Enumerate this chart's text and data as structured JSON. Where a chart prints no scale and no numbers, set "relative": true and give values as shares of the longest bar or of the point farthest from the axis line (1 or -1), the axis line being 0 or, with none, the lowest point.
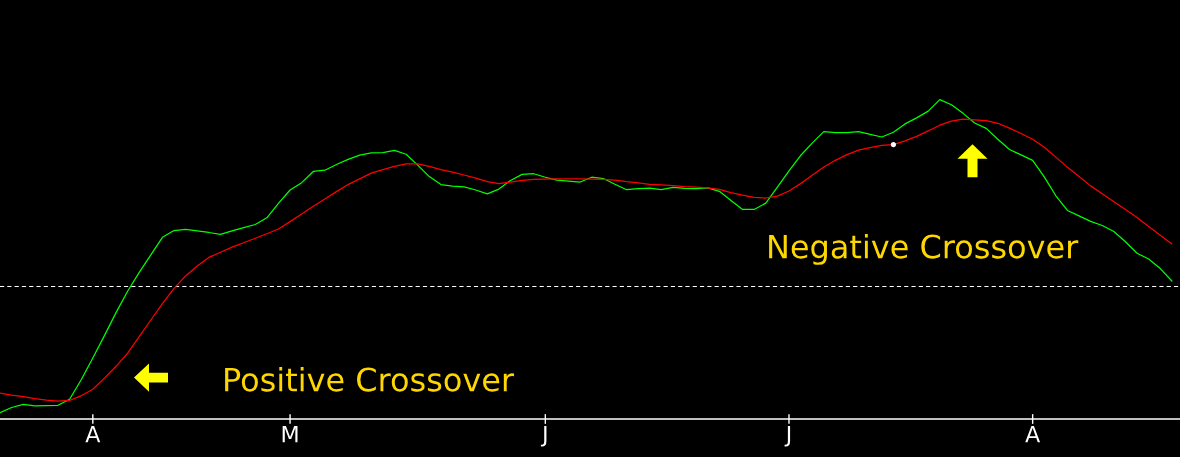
{
  "chart_data": {
    "type": "line",
    "relative": true,
    "tick_labels": "x",
    "categories": [
      null,
      null,
      null,
      null,
      null,
      null,
      null,
      null,
      "A",
      null,
      null,
      null,
      null,
      null,
      null,
      null,
      null,
      null,
      null,
      null,
      null,
      null,
      null,
      null,
      null,
      "M",
      null,
      null,
      null,
      null,
      null,
      null,
      null,
      null,
      null,
      null,
      null,
      null,
      null,
      null,
      null,
      null,
      null,
      null,
      null,
      null,
      null,
      "J",
      null,
      null,
      null,
      null,
      null,
      null,
      null,
      null,
      null,
      null,
      null,
      null,
      null,
      null,
      null,
      null,
      null,
      null,
      null,
      null,
      "J",
      null,
      null,
      null,
      null,
      null,
      null,
      null,
      null,
      null,
      null,
      null,
      null,
      null,
      null,
      null,
      null,
      null,
      null,
      null,
      null,
      "A",
      null,
      null,
      null,
      null,
      null,
      null,
      null,
      null,
      null,
      null,
      null,
      null
    ],
    "series": [
      {
        "color": "#00ff00",
        "values": [
          0.02,
          0.036,
          0.046,
          0.041,
          0.042,
          0.043,
          0.062,
          0.123,
          0.191,
          0.261,
          0.333,
          0.4,
          0.459,
          0.514,
          0.569,
          0.59,
          0.594,
          0.589,
          0.584,
          0.578,
          0.589,
          0.599,
          0.609,
          0.63,
          0.675,
          0.717,
          0.74,
          0.775,
          0.779,
          0.797,
          0.813,
          0.826,
          0.833,
          0.834,
          0.841,
          0.829,
          0.795,
          0.759,
          0.734,
          0.729,
          0.727,
          0.717,
          0.705,
          0.72,
          0.747,
          0.766,
          0.768,
          0.757,
          0.748,
          0.745,
          0.742,
          0.757,
          0.753,
          0.735,
          0.718,
          0.721,
          0.723,
          0.718,
          0.725,
          0.722,
          0.721,
          0.724,
          0.713,
          0.684,
          0.656,
          0.656,
          0.676,
          0.726,
          0.777,
          0.825,
          0.864,
          0.9,
          0.897,
          0.897,
          0.9,
          0.891,
          0.883,
          0.898,
          0.924,
          0.943,
          0.964,
          1.0,
          0.984,
          0.957,
          0.927,
          0.91,
          0.876,
          0.844,
          0.827,
          0.81,
          0.758,
          0.699,
          0.653,
          0.636,
          0.619,
          0.606,
          0.587,
          0.555,
          0.519,
          0.501,
          0.471,
          0.432
        ]
      },
      {
        "color": "#ff0000",
        "values": [
          0.081,
          0.075,
          0.07,
          0.064,
          0.059,
          0.056,
          0.058,
          0.073,
          0.093,
          0.128,
          0.165,
          0.206,
          0.258,
          0.31,
          0.361,
          0.409,
          0.448,
          0.479,
          0.506,
          0.522,
          0.538,
          0.552,
          0.566,
          0.58,
          0.595,
          0.618,
          0.642,
          0.666,
          0.689,
          0.712,
          0.734,
          0.752,
          0.77,
          0.781,
          0.791,
          0.799,
          0.799,
          0.791,
          0.781,
          0.773,
          0.764,
          0.754,
          0.743,
          0.737,
          0.742,
          0.747,
          0.75,
          0.751,
          0.752,
          0.752,
          0.752,
          0.751,
          0.75,
          0.748,
          0.743,
          0.739,
          0.735,
          0.733,
          0.731,
          0.728,
          0.726,
          0.724,
          0.719,
          0.709,
          0.701,
          0.694,
          0.692,
          0.698,
          0.714,
          0.737,
          0.763,
          0.789,
          0.81,
          0.828,
          0.842,
          0.85,
          0.857,
          0.859,
          0.871,
          0.885,
          0.902,
          0.92,
          0.933,
          0.939,
          0.937,
          0.934,
          0.926,
          0.911,
          0.894,
          0.876,
          0.851,
          0.82,
          0.788,
          0.759,
          0.73,
          0.705,
          0.68,
          0.656,
          0.631,
          0.603,
          0.575,
          0.548
        ]
      },
      {
        "type": "scatter",
        "marker": "circle",
        "color": "#ffffff",
        "values": [
          null,
          null,
          null,
          null,
          null,
          null,
          null,
          null,
          null,
          null,
          null,
          null,
          null,
          null,
          null,
          null,
          null,
          null,
          null,
          null,
          null,
          null,
          null,
          null,
          null,
          null,
          null,
          null,
          null,
          null,
          null,
          null,
          null,
          null,
          null,
          null,
          null,
          null,
          null,
          null,
          null,
          null,
          null,
          null,
          null,
          null,
          null,
          null,
          null,
          null,
          null,
          null,
          null,
          null,
          null,
          null,
          null,
          null,
          null,
          null,
          null,
          null,
          null,
          null,
          null,
          null,
          null,
          null,
          null,
          null,
          null,
          null,
          null,
          null,
          null,
          null,
          null,
          0.859,
          null,
          null,
          null,
          null,
          null,
          null,
          null,
          null,
          null,
          null,
          null,
          null,
          null,
          null,
          null,
          null,
          null,
          null,
          null,
          null,
          null,
          null,
          null,
          null
        ]
      }
    ],
    "ref_lines": [
      {
        "axis": "y",
        "value": 0.415,
        "color": "#ffffff",
        "line_style": "dashed"
      }
    ],
    "annotations": [
      "Positive Crossover",
      "Negative Crossover"
    ]
  }
}
